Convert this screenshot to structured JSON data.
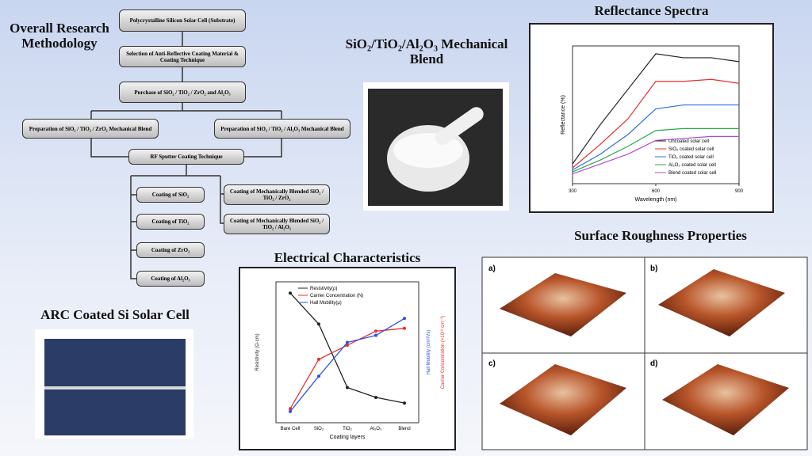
{
  "headings": {
    "methodology": "Overall Research Methodology",
    "blend": "SiO₂/TiO₂/Al₂O₃ Mechanical Blend",
    "reflectance": "Reflectance Spectra",
    "roughness": "Surface Roughness Properties",
    "electrical": "Electrical Characteristics",
    "arc": "ARC Coated Si Solar Cell"
  },
  "flowchart": {
    "nodes": [
      "Polycrystalline Silicon Solar Cell (Substrate)",
      "Selection of Anti-Reflective Coating Material & Coating Technique",
      "Purchase of SiO₂ / TiO₂ / ZrO₂ and Al₂O₃",
      "Preparation of SiO₂ / TiO₂ / ZrO₂ Mechanical Blend",
      "Preparation of SiO₂ / TiO₂ / Al₂O₃ Mechanical Blend",
      "RF Sputter Coating Technique",
      "Coating of SiO₂",
      "Coating of TiO₂",
      "Coating of ZrO₂",
      "Coating of Al₂O₃",
      "Coating of Mechanically Blended SiO₂ / TiO₂ / ZrO₂",
      "Coating of Mechanically Blended SiO₂ / TiO₂ / Al₂O₃"
    ]
  },
  "afm_labels": [
    "a)",
    "b)",
    "c)",
    "d)"
  ],
  "chart_data": [
    {
      "type": "line",
      "x_label": "Wavelength (nm)",
      "y_label": "Reflectance (%)",
      "x": [
        300,
        400,
        500,
        600,
        700,
        800,
        900
      ],
      "xlim": [
        300,
        900
      ],
      "xticks": [
        300,
        600,
        900
      ],
      "ylim": [
        0,
        70
      ],
      "series": [
        {
          "name": "Uncoated solar cell",
          "color": "#222222",
          "values": [
            10,
            30,
            48,
            66,
            64,
            64,
            62
          ]
        },
        {
          "name": "SiO₂ coated solar cell",
          "color": "#e8302a",
          "values": [
            8,
            20,
            33,
            52,
            52,
            53,
            51
          ]
        },
        {
          "name": "TiO₂ coated solar cell",
          "color": "#2a6fe0",
          "values": [
            7,
            15,
            25,
            38,
            40,
            40,
            40
          ]
        },
        {
          "name": "Al₂O₃ coated solar cell",
          "color": "#2aa84a",
          "values": [
            6,
            12,
            19,
            27,
            28,
            28,
            28
          ]
        },
        {
          "name": "Blend coated solar cell",
          "color": "#b04ad8",
          "values": [
            5,
            10,
            15,
            22,
            23,
            24,
            24
          ]
        }
      ]
    },
    {
      "type": "line",
      "x_label": "Coating layers",
      "y_label": "Resistivity (Ω-cm)",
      "y2_label": "Hall Mobility (cm²/Vs)",
      "y3_label": "Carrier Concentration (×10¹⁸ cm⁻³)",
      "categories": [
        "Bare Cell",
        "SiO₂",
        "TiO₂",
        "Al₂O₃",
        "Blend"
      ],
      "ylim": [
        0,
        100
      ],
      "series": [
        {
          "name": "Resistivity(ρ)",
          "color": "#222222",
          "values": [
            92,
            70,
            25,
            18,
            14
          ]
        },
        {
          "name": "Carrier Concentration (N)",
          "color": "#e8302a",
          "values": [
            10,
            45,
            55,
            65,
            67
          ]
        },
        {
          "name": "Hall Mobility(μ)",
          "color": "#2a50e0",
          "values": [
            8,
            33,
            57,
            62,
            74
          ]
        }
      ]
    }
  ]
}
